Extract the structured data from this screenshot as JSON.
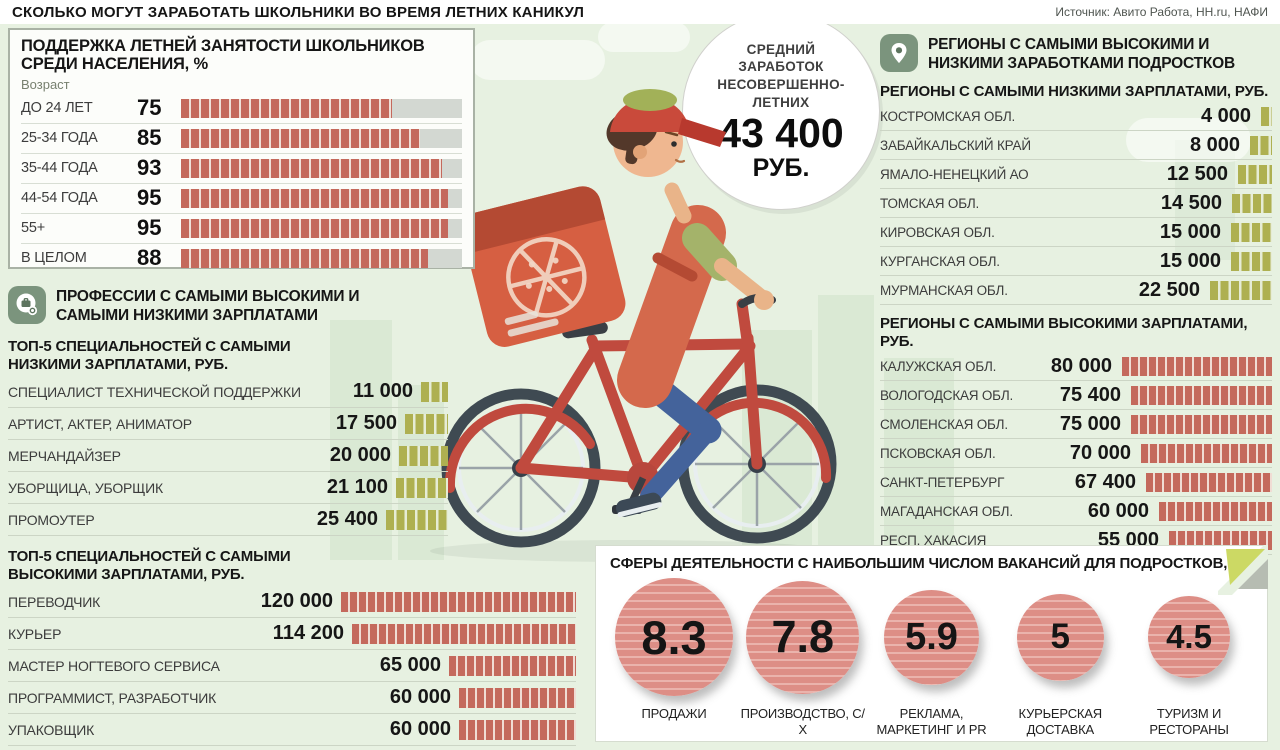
{
  "title": "СКОЛЬКО МОГУТ ЗАРАБОТАТЬ ШКОЛЬНИКИ ВО ВРЕМЯ ЛЕТНИХ КАНИКУЛ",
  "source": "Источник: Авито Работа, HH.ru, НАФИ",
  "colors": {
    "red_bar": "#c4695c",
    "olive_bar": "#aeb051",
    "bar_track": "#d3d8d2",
    "background_green": "#e7f1e1",
    "circle_fill": "#dd8e86",
    "icon_green": "#7b947d"
  },
  "support": {
    "title": "ПОДДЕРЖКА ЛЕТНЕЙ ЗАНЯТОСТИ ШКОЛЬНИКОВ СРЕДИ НАСЕЛЕНИЯ, %",
    "age_label": "Возраст",
    "rows": [
      {
        "label": "ДО 24 ЛЕТ",
        "value": 75
      },
      {
        "label": "25-34 ГОДА",
        "value": 85
      },
      {
        "label": "35-44 ГОДА",
        "value": 93
      },
      {
        "label": "44-54 ГОДА",
        "value": 95
      },
      {
        "label": "55+",
        "value": 95
      },
      {
        "label": "В ЦЕЛОМ",
        "value": 88
      }
    ]
  },
  "average": {
    "label": "СРЕДНИЙ ЗАРАБОТОК НЕСОВЕРШЕННО­-ЛЕТНИХ",
    "value": "43 400",
    "unit": "РУБ."
  },
  "professions": {
    "title": "ПРОФЕССИИ С САМЫМИ ВЫСОКИМИ И САМЫМИ НИЗКИМИ ЗАРПЛАТАМИ",
    "low": {
      "subtitle": "ТОП-5 СПЕЦИАЛЬНОСТЕЙ С САМЫМИ НИЗКИМИ ЗАРПЛАТАМИ, РУБ.",
      "rows": [
        {
          "label": "СПЕЦИАЛИСТ ТЕХНИЧЕСКОЙ ПОДДЕРЖКИ",
          "value": "11 000",
          "num": 11000
        },
        {
          "label": "АРТИСТ, АКТЕР, АНИМАТОР",
          "value": "17 500",
          "num": 17500
        },
        {
          "label": "МЕРЧАНДАЙЗЕР",
          "value": "20 000",
          "num": 20000
        },
        {
          "label": "УБОРЩИЦА, УБОРЩИК",
          "value": "21 100",
          "num": 21100
        },
        {
          "label": "ПРОМОУТЕР",
          "value": "25 400",
          "num": 25400
        }
      ]
    },
    "high": {
      "subtitle": "ТОП-5 СПЕЦИАЛЬНОСТЕЙ С САМЫМИ ВЫСОКИМИ ЗАРПЛАТАМИ, РУБ.",
      "rows": [
        {
          "label": "ПЕРЕВОДЧИК",
          "value": "120 000",
          "num": 120000
        },
        {
          "label": "КУРЬЕР",
          "value": "114 200",
          "num": 114200
        },
        {
          "label": "МАСТЕР НОГТЕВОГО СЕРВИСА",
          "value": "65 000",
          "num": 65000
        },
        {
          "label": "ПРОГРАММИСТ, РАЗРАБОТЧИК",
          "value": "60 000",
          "num": 60000
        },
        {
          "label": "УПАКОВЩИК",
          "value": "60 000",
          "num": 60000
        }
      ]
    }
  },
  "regions": {
    "title": "РЕГИОНЫ С САМЫМИ ВЫСОКИМИ И НИЗКИМИ ЗАРАБОТКАМИ ПОДРОСТКОВ",
    "low": {
      "subtitle": "РЕГИОНЫ С САМЫМИ НИЗКИМИ ЗАРПЛАТАМИ, РУБ.",
      "rows": [
        {
          "label": "КОСТРОМСКАЯ ОБЛ.",
          "value": "4 000",
          "num": 4000
        },
        {
          "label": "ЗАБАЙКАЛЬСКИЙ КРАЙ",
          "value": "8 000",
          "num": 8000
        },
        {
          "label": "ЯМАЛО-НЕНЕЦКИЙ АО",
          "value": "12 500",
          "num": 12500
        },
        {
          "label": "ТОМСКАЯ ОБЛ.",
          "value": "14 500",
          "num": 14500
        },
        {
          "label": "КИРОВСКАЯ ОБЛ.",
          "value": "15 000",
          "num": 15000
        },
        {
          "label": "КУРГАНСКАЯ ОБЛ.",
          "value": "15 000",
          "num": 15000
        },
        {
          "label": "МУРМАНСКАЯ ОБЛ.",
          "value": "22 500",
          "num": 22500
        }
      ]
    },
    "high": {
      "subtitle": "РЕГИОНЫ С САМЫМИ ВЫСОКИМИ ЗАРПЛАТАМИ, РУБ.",
      "rows": [
        {
          "label": "КАЛУЖСКАЯ ОБЛ.",
          "value": "80 000",
          "num": 80000
        },
        {
          "label": "ВОЛОГОДСКАЯ ОБЛ.",
          "value": "75 400",
          "num": 75400
        },
        {
          "label": "СМОЛЕНСКАЯ ОБЛ.",
          "value": "75 000",
          "num": 75000
        },
        {
          "label": "ПСКОВСКАЯ ОБЛ.",
          "value": "70 000",
          "num": 70000
        },
        {
          "label": "САНКТ-ПЕТЕРБУРГ",
          "value": "67 400",
          "num": 67400
        },
        {
          "label": "МАГАДАНСКАЯ ОБЛ.",
          "value": "60 000",
          "num": 60000
        },
        {
          "label": "РЕСП. ХАКАСИЯ",
          "value": "55 000",
          "num": 55000
        }
      ]
    }
  },
  "vacancies": {
    "title": "СФЕРЫ ДЕЯТЕЛЬНОСТИ С НАИБОЛЬШИМ ЧИСЛОМ ВАКАНСИЙ ДЛЯ ПОДРОСТКОВ, %",
    "items": [
      {
        "value": "8.3",
        "num": 8.3,
        "label": "ПРОДАЖИ"
      },
      {
        "value": "7.8",
        "num": 7.8,
        "label": "ПРОИЗВОДСТВО, С/Х"
      },
      {
        "value": "5.9",
        "num": 5.9,
        "label": "РЕКЛАМА, МАРКЕТИНГ И PR"
      },
      {
        "value": "5",
        "num": 5,
        "label": "КУРЬЕРСКАЯ ДОСТАВКА"
      },
      {
        "value": "4.5",
        "num": 4.5,
        "label": "ТУРИЗМ И РЕСТОРАНЫ"
      }
    ]
  },
  "chart_data": [
    {
      "type": "bar",
      "title": "ПОДДЕРЖКА ЛЕТНЕЙ ЗАНЯТОСТИ ШКОЛЬНИКОВ СРЕДИ НАСЕЛЕНИЯ, %",
      "categories": [
        "ДО 24 ЛЕТ",
        "25-34 ГОДА",
        "35-44 ГОДА",
        "44-54 ГОДА",
        "55+",
        "В ЦЕЛОМ"
      ],
      "values": [
        75,
        85,
        93,
        95,
        95,
        88
      ],
      "xlabel": "Возраст",
      "ylabel": "%",
      "ylim": [
        0,
        100
      ],
      "orientation": "horizontal"
    },
    {
      "type": "bar",
      "title": "ТОП-5 СПЕЦИАЛЬНОСТЕЙ С САМЫМИ НИЗКИМИ ЗАРПЛАТАМИ, РУБ.",
      "categories": [
        "СПЕЦИАЛИСТ ТЕХНИЧЕСКОЙ ПОДДЕРЖКИ",
        "АРТИСТ, АКТЕР, АНИМАТОР",
        "МЕРЧАНДАЙЗЕР",
        "УБОРЩИЦА, УБОРЩИК",
        "ПРОМОУТЕР"
      ],
      "values": [
        11000,
        17500,
        20000,
        21100,
        25400
      ],
      "ylabel": "РУБ.",
      "orientation": "horizontal"
    },
    {
      "type": "bar",
      "title": "ТОП-5 СПЕЦИАЛЬНОСТЕЙ С САМЫМИ ВЫСОКИМИ ЗАРПЛАТАМИ, РУБ.",
      "categories": [
        "ПЕРЕВОДЧИК",
        "КУРЬЕР",
        "МАСТЕР НОГТЕВОГО СЕРВИСА",
        "ПРОГРАММИСТ, РАЗРАБОТЧИК",
        "УПАКОВЩИК"
      ],
      "values": [
        120000,
        114200,
        65000,
        60000,
        60000
      ],
      "ylabel": "РУБ.",
      "orientation": "horizontal"
    },
    {
      "type": "bar",
      "title": "РЕГИОНЫ С САМЫМИ НИЗКИМИ ЗАРПЛАТАМИ, РУБ.",
      "categories": [
        "КОСТРОМСКАЯ ОБЛ.",
        "ЗАБАЙКАЛЬСКИЙ КРАЙ",
        "ЯМАЛО-НЕНЕЦКИЙ АО",
        "ТОМСКАЯ ОБЛ.",
        "КИРОВСКАЯ ОБЛ.",
        "КУРГАНСКАЯ ОБЛ.",
        "МУРМАНСКАЯ ОБЛ."
      ],
      "values": [
        4000,
        8000,
        12500,
        14500,
        15000,
        15000,
        22500
      ],
      "ylabel": "РУБ.",
      "orientation": "horizontal"
    },
    {
      "type": "bar",
      "title": "РЕГИОНЫ С САМЫМИ ВЫСОКИМИ ЗАРПЛАТАМИ, РУБ.",
      "categories": [
        "КАЛУЖСКАЯ ОБЛ.",
        "ВОЛОГОДСКАЯ ОБЛ.",
        "СМОЛЕНСКАЯ ОБЛ.",
        "ПСКОВСКАЯ ОБЛ.",
        "САНКТ-ПЕТЕРБУРГ",
        "МАГАДАНСКАЯ ОБЛ.",
        "РЕСП. ХАКАСИЯ"
      ],
      "values": [
        80000,
        75400,
        75000,
        70000,
        67400,
        60000,
        55000
      ],
      "ylabel": "РУБ.",
      "orientation": "horizontal"
    },
    {
      "type": "bar",
      "title": "СФЕРЫ ДЕЯТЕЛЬНОСТИ С НАИБОЛЬШИМ ЧИСЛОМ ВАКАНСИЙ ДЛЯ ПОДРОСТКОВ, %",
      "categories": [
        "ПРОДАЖИ",
        "ПРОИЗВОДСТВО, С/Х",
        "РЕКЛАМА, МАРКЕТИНГ И PR",
        "КУРЬЕРСКАЯ ДОСТАВКА",
        "ТУРИЗМ И РЕСТОРАНЫ"
      ],
      "values": [
        8.3,
        7.8,
        5.9,
        5,
        4.5
      ],
      "ylabel": "%",
      "note": "проценты показаны кругами разного размера"
    },
    {
      "type": "table",
      "title": "СРЕДНИЙ ЗАРАБОТОК НЕСОВЕРШЕННОЛЕТНИХ",
      "categories": [
        "СРЕДНИЙ ЗАРАБОТОК НЕСОВЕРШЕННОЛЕТНИХ, РУБ."
      ],
      "values": [
        43400
      ]
    }
  ]
}
